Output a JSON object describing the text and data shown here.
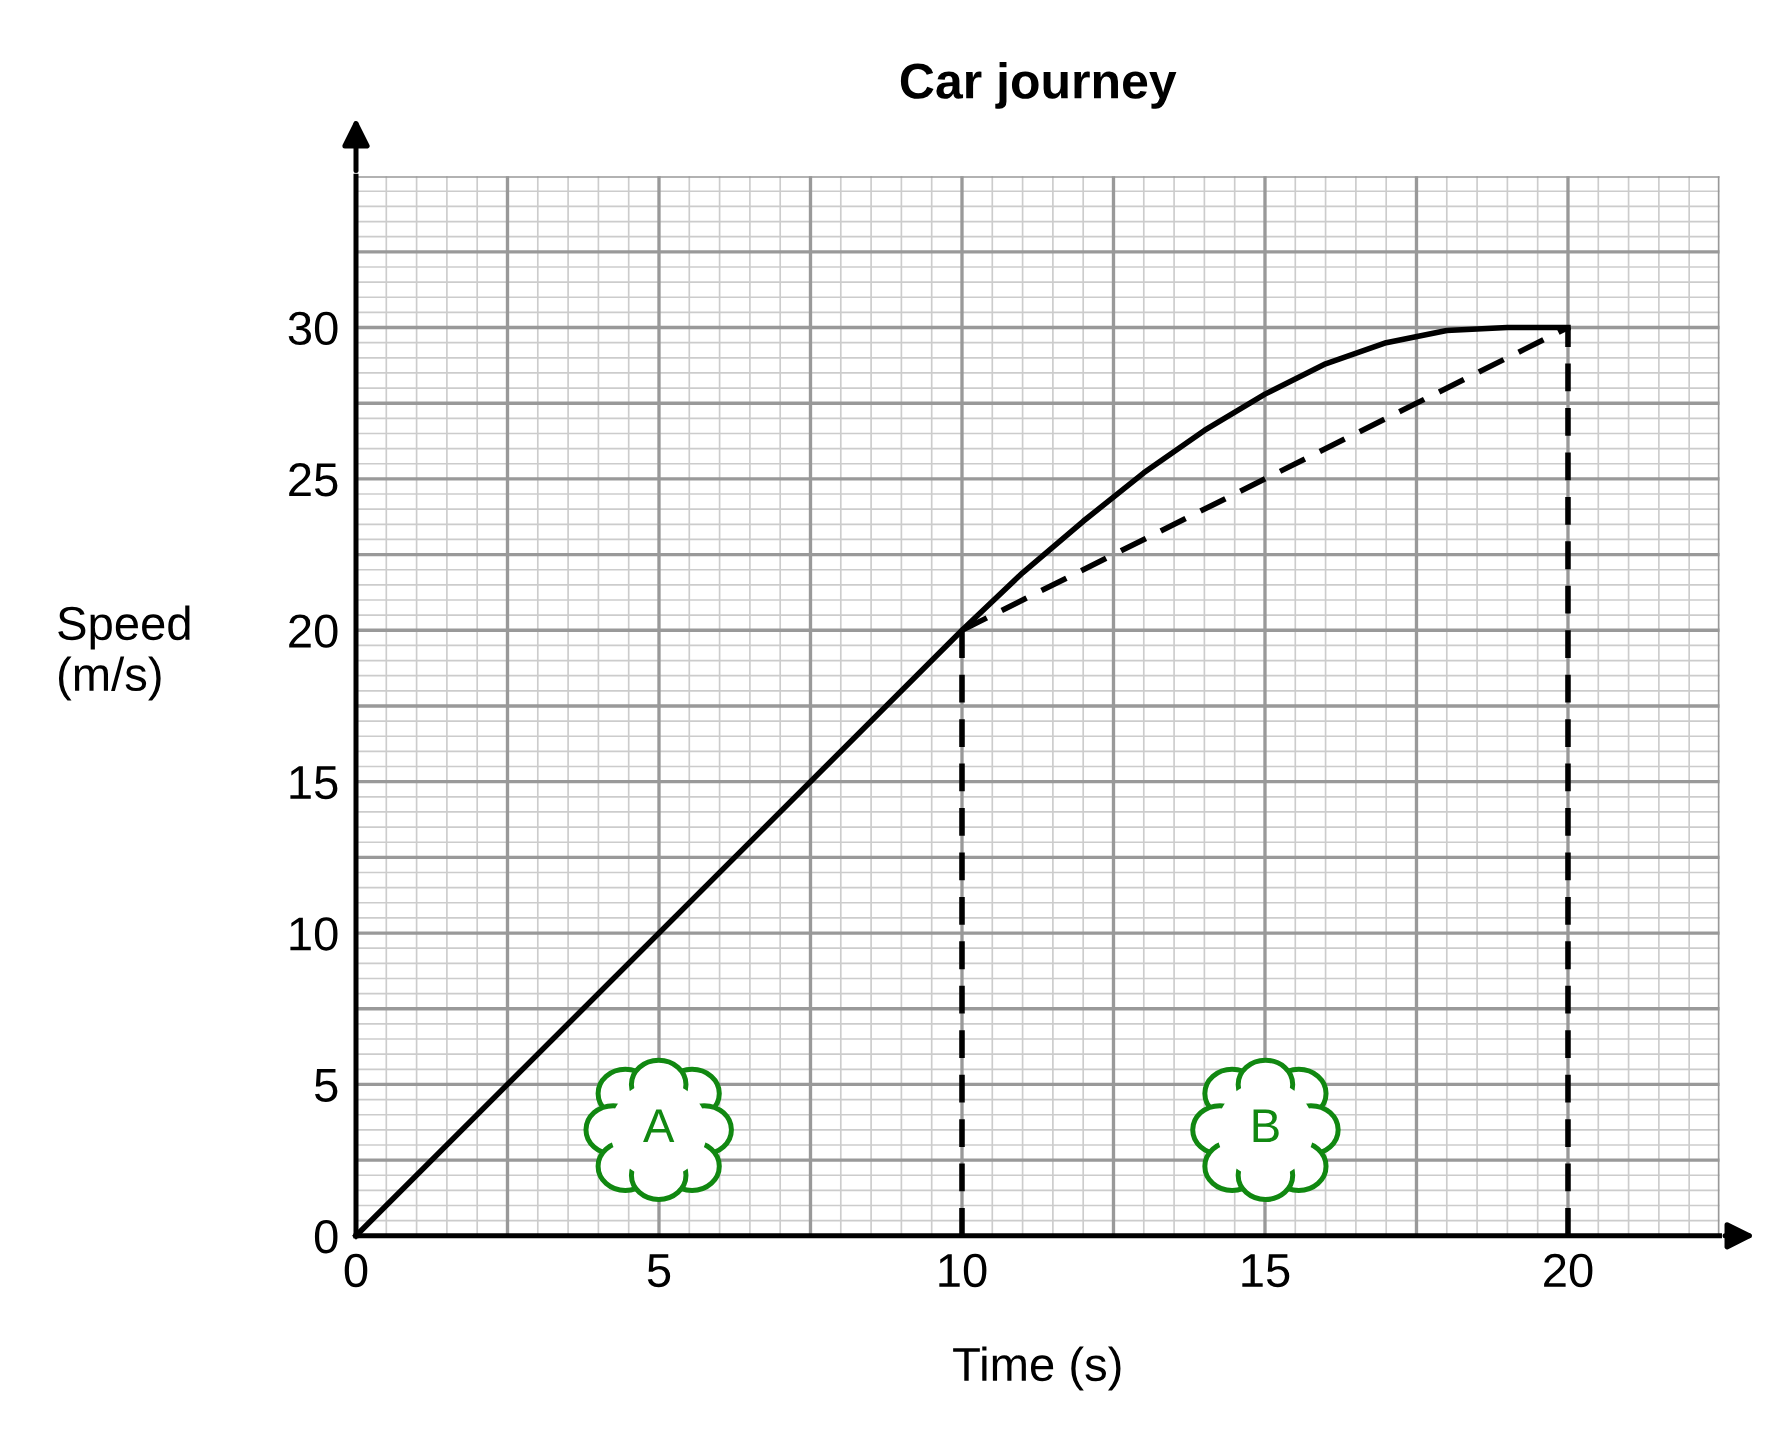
{
  "chart_data": {
    "type": "line",
    "title": "Car journey",
    "xlabel": "Time (s)",
    "ylabel": "Speed\n(m/s)",
    "xlim": [
      0,
      22.5
    ],
    "ylim": [
      0,
      35
    ],
    "xticks": [
      0,
      {
        "value": 2.5,
        "label": null
      },
      5,
      {
        "value": 7.5,
        "label": null
      },
      10,
      {
        "value": 12.5,
        "label": null
      },
      15,
      {
        "value": 17.5,
        "label": null
      },
      20,
      {
        "value": 22.5,
        "label": null
      }
    ],
    "yticks": [
      0,
      {
        "value": 2.5,
        "label": null
      },
      5,
      {
        "value": 7.5,
        "label": null
      },
      10,
      {
        "value": 12.5,
        "label": null
      },
      15,
      {
        "value": 17.5,
        "label": null
      },
      20,
      {
        "value": 22.5,
        "label": null
      },
      25,
      {
        "value": 27.5,
        "label": null
      },
      30,
      {
        "value": 32.5,
        "label": null
      },
      {
        "value": 35,
        "label": null
      }
    ],
    "grid": true,
    "legend": false,
    "marker": "none",
    "series": [
      {
        "color": "#000000",
        "line_style": "solid",
        "x": [
          0,
          10,
          11,
          12,
          13,
          14,
          15,
          16,
          17,
          18,
          19,
          20
        ],
        "values": [
          0,
          20,
          21.9,
          23.6,
          25.2,
          26.6,
          27.8,
          28.8,
          29.5,
          29.9,
          30,
          30
        ]
      },
      {
        "color": "#000000",
        "line_style": "dashed",
        "x": [
          10,
          20
        ],
        "values": [
          20,
          30
        ]
      },
      {
        "color": "#000000",
        "line_style": "dashed",
        "x": [
          10,
          10
        ],
        "values": [
          0,
          20
        ]
      },
      {
        "color": "#000000",
        "line_style": "dashed",
        "x": [
          20,
          20
        ],
        "values": [
          0,
          30
        ]
      }
    ],
    "annotations": [
      "A",
      "B"
    ]
  }
}
